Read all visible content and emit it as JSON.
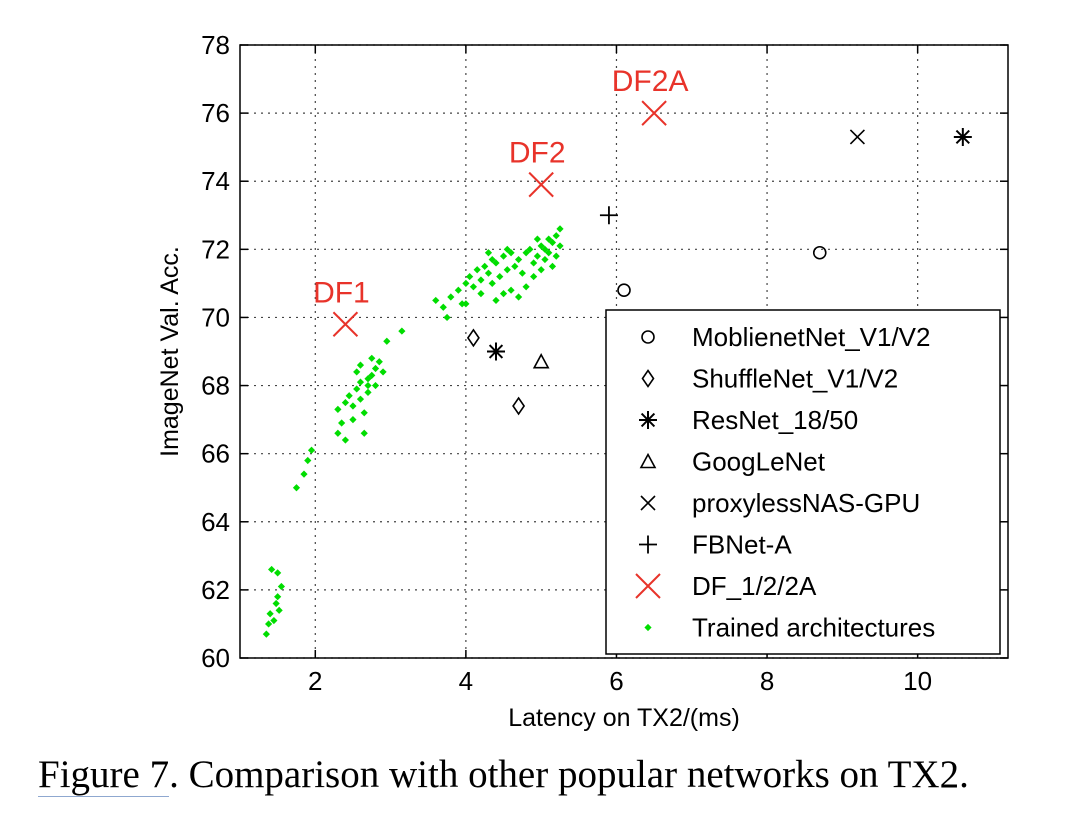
{
  "caption": {
    "prefix": "Figure 7",
    "text": ". Comparison with other popular networks on TX2."
  },
  "chart_data": {
    "type": "scatter",
    "title": "",
    "xlabel": "Latency on TX2/(ms)",
    "ylabel": "ImageNet Val. Acc.",
    "xlim": [
      1,
      11.2
    ],
    "ylim": [
      60,
      78
    ],
    "xticks": [
      2,
      4,
      6,
      8,
      10
    ],
    "yticks": [
      60,
      62,
      64,
      66,
      68,
      70,
      72,
      74,
      76,
      78
    ],
    "grid": true,
    "legend_position": "lower-right",
    "series": [
      {
        "name": "MoblienetNet_V1/V2",
        "marker": "circle",
        "color": "#000000",
        "points": [
          [
            6.1,
            70.8
          ],
          [
            8.7,
            71.9
          ]
        ]
      },
      {
        "name": "ShuffleNet_V1/V2",
        "marker": "diamond",
        "color": "#000000",
        "points": [
          [
            4.1,
            69.4
          ],
          [
            4.7,
            67.4
          ]
        ]
      },
      {
        "name": "ResNet_18/50",
        "marker": "asterisk",
        "color": "#000000",
        "points": [
          [
            4.4,
            69.0
          ],
          [
            10.6,
            75.3
          ]
        ]
      },
      {
        "name": "GoogLeNet",
        "marker": "triangle",
        "color": "#000000",
        "points": [
          [
            5.0,
            68.7
          ]
        ]
      },
      {
        "name": "proxylessNAS-GPU",
        "marker": "x",
        "color": "#000000",
        "points": [
          [
            9.2,
            75.3
          ]
        ]
      },
      {
        "name": "FBNet-A",
        "marker": "plus",
        "color": "#000000",
        "points": [
          [
            5.9,
            73.0
          ]
        ]
      },
      {
        "name": "DF_1/2/2A",
        "marker": "x-large",
        "color": "#e8332a",
        "points": [
          [
            2.4,
            69.8
          ],
          [
            5.0,
            73.9
          ],
          [
            6.5,
            76.0
          ]
        ]
      },
      {
        "name": "Trained architectures",
        "marker": "dot",
        "color": "#00dd00",
        "points": [
          [
            1.35,
            60.7
          ],
          [
            1.38,
            61.0
          ],
          [
            1.4,
            61.3
          ],
          [
            1.45,
            61.1
          ],
          [
            1.48,
            61.6
          ],
          [
            1.52,
            61.4
          ],
          [
            1.42,
            62.6
          ],
          [
            1.5,
            62.5
          ],
          [
            1.55,
            62.1
          ],
          [
            1.5,
            61.8
          ],
          [
            1.75,
            65.0
          ],
          [
            1.85,
            65.4
          ],
          [
            1.9,
            65.8
          ],
          [
            1.95,
            66.1
          ],
          [
            2.3,
            66.6
          ],
          [
            2.35,
            66.9
          ],
          [
            2.3,
            67.3
          ],
          [
            2.4,
            67.5
          ],
          [
            2.45,
            67.7
          ],
          [
            2.5,
            67.4
          ],
          [
            2.55,
            67.9
          ],
          [
            2.6,
            68.1
          ],
          [
            2.4,
            66.4
          ],
          [
            2.5,
            67.0
          ],
          [
            2.6,
            67.6
          ],
          [
            2.65,
            67.2
          ],
          [
            2.7,
            68.0
          ],
          [
            2.75,
            68.3
          ],
          [
            2.8,
            68.5
          ],
          [
            2.85,
            68.7
          ],
          [
            2.65,
            66.6
          ],
          [
            2.7,
            67.8
          ],
          [
            2.8,
            68.0
          ],
          [
            2.9,
            68.4
          ],
          [
            2.55,
            68.4
          ],
          [
            2.6,
            68.6
          ],
          [
            2.75,
            68.8
          ],
          [
            2.7,
            68.2
          ],
          [
            2.95,
            69.3
          ],
          [
            3.15,
            69.6
          ],
          [
            3.6,
            70.5
          ],
          [
            3.7,
            70.3
          ],
          [
            3.8,
            70.6
          ],
          [
            3.9,
            70.8
          ],
          [
            3.95,
            70.4
          ],
          [
            4.0,
            71.0
          ],
          [
            4.05,
            71.2
          ],
          [
            4.1,
            70.9
          ],
          [
            4.15,
            71.4
          ],
          [
            4.2,
            71.1
          ],
          [
            4.25,
            71.5
          ],
          [
            4.3,
            71.3
          ],
          [
            4.35,
            71.7
          ],
          [
            4.4,
            71.6
          ],
          [
            4.45,
            71.2
          ],
          [
            4.5,
            71.8
          ],
          [
            4.5,
            70.7
          ],
          [
            4.55,
            71.4
          ],
          [
            4.6,
            71.9
          ],
          [
            4.65,
            71.5
          ],
          [
            4.7,
            71.7
          ],
          [
            4.75,
            71.3
          ],
          [
            4.8,
            71.9
          ],
          [
            4.85,
            72.0
          ],
          [
            4.9,
            71.6
          ],
          [
            4.95,
            71.8
          ],
          [
            5.0,
            72.1
          ],
          [
            5.05,
            71.7
          ],
          [
            5.1,
            71.9
          ],
          [
            5.15,
            72.2
          ],
          [
            5.2,
            72.4
          ],
          [
            5.2,
            71.8
          ],
          [
            5.25,
            72.1
          ],
          [
            5.1,
            72.3
          ],
          [
            4.9,
            71.2
          ],
          [
            4.8,
            70.9
          ],
          [
            4.6,
            70.8
          ],
          [
            4.4,
            70.5
          ],
          [
            4.7,
            70.6
          ],
          [
            4.3,
            71.9
          ],
          [
            4.55,
            72.0
          ],
          [
            5.0,
            71.4
          ],
          [
            5.15,
            71.5
          ],
          [
            5.25,
            72.6
          ],
          [
            4.2,
            70.7
          ],
          [
            4.0,
            70.4
          ],
          [
            3.75,
            70.0
          ],
          [
            4.35,
            71.0
          ],
          [
            4.95,
            72.3
          ],
          [
            5.05,
            72.0
          ]
        ]
      }
    ]
  }
}
